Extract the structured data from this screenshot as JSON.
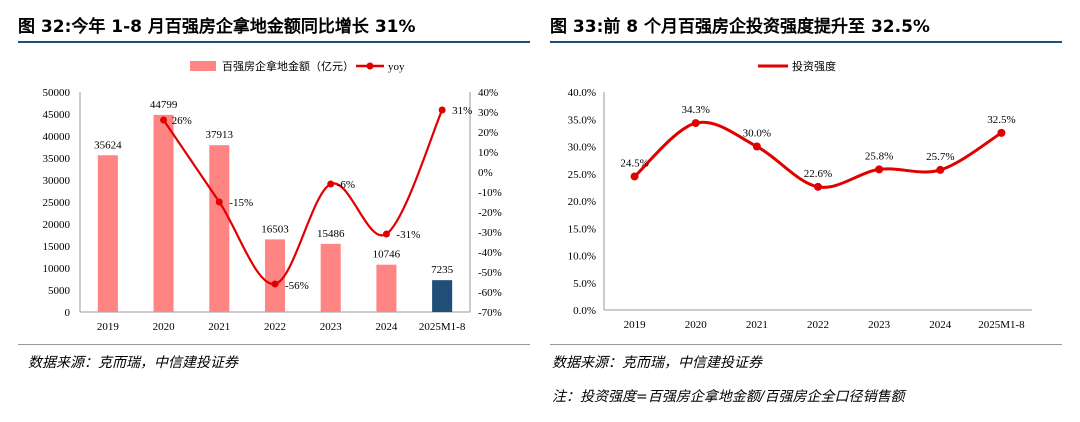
{
  "left": {
    "title": "图 32:今年 1-8 月百强房企拿地金额同比增长 31%",
    "source": "数据来源：克而瑞，中信建投证券",
    "legend_bar": "百强房企拿地金额（亿元）",
    "legend_line": "yoy"
  },
  "right": {
    "title": "图 33:前 8 个月百强房企投资强度提升至 32.5%",
    "source": "数据来源：克而瑞，中信建投证券",
    "note": "注：投资强度=百强房企拿地金额/百强房企全口径销售额",
    "legend_line": "投资强度"
  },
  "chart_data": [
    {
      "type": "bar",
      "categories": [
        "2019",
        "2020",
        "2021",
        "2022",
        "2023",
        "2024",
        "2025M1-8"
      ],
      "series": [
        {
          "name": "百强房企拿地金额（亿元）",
          "values": [
            35624,
            44799,
            37913,
            16503,
            15486,
            10746,
            7235
          ],
          "color": "#ff8585",
          "highlight_color": "#1f4e79",
          "highlight_index": 6
        },
        {
          "name": "yoy",
          "type": "line",
          "axis": "right",
          "values": [
            null,
            26,
            -15,
            -56,
            -6,
            -31,
            31
          ],
          "labels": [
            "",
            "26%",
            "-15%",
            "-56%",
            "-6%",
            "-31%",
            "31%"
          ],
          "color": "#e00000"
        }
      ],
      "ylim": [
        0,
        50000
      ],
      "yticks": [
        "0",
        "5000",
        "10000",
        "15000",
        "20000",
        "25000",
        "30000",
        "35000",
        "40000",
        "45000",
        "50000"
      ],
      "y2lim": [
        -70,
        40
      ],
      "y2ticks": [
        "-70%",
        "-60%",
        "-50%",
        "-40%",
        "-30%",
        "-20%",
        "-10%",
        "0%",
        "10%",
        "20%",
        "30%",
        "40%"
      ],
      "legend": "top",
      "grid": false
    },
    {
      "type": "line",
      "categories": [
        "2019",
        "2020",
        "2021",
        "2022",
        "2023",
        "2024",
        "2025M1-8"
      ],
      "series": [
        {
          "name": "投资强度",
          "values": [
            24.5,
            34.3,
            30.0,
            22.6,
            25.8,
            25.7,
            32.5
          ],
          "labels": [
            "24.5%",
            "34.3%",
            "30.0%",
            "22.6%",
            "25.8%",
            "25.7%",
            "32.5%"
          ],
          "color": "#e00000"
        }
      ],
      "ylim": [
        0,
        40
      ],
      "yticks": [
        "0.0%",
        "5.0%",
        "10.0%",
        "15.0%",
        "20.0%",
        "25.0%",
        "30.0%",
        "35.0%",
        "40.0%"
      ],
      "legend": "top",
      "grid": false
    }
  ]
}
